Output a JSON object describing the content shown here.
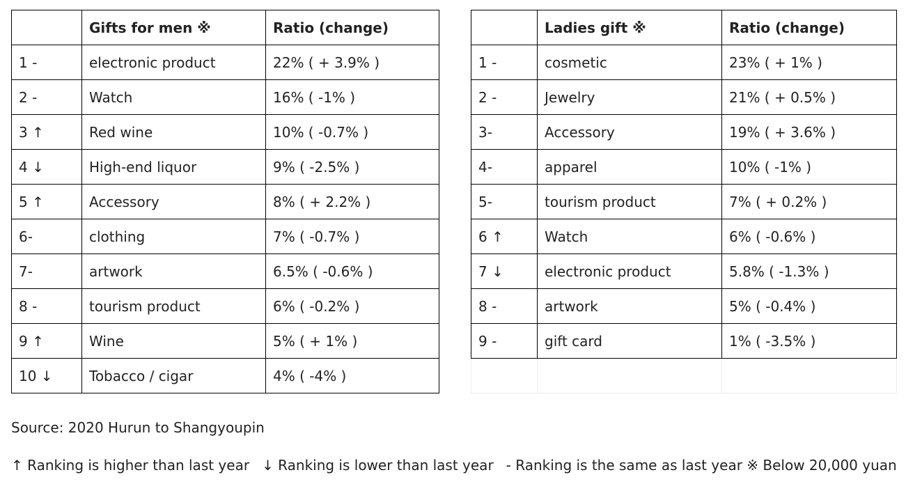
{
  "men_table": {
    "headers": [
      "",
      "Gifts for men ※",
      "Ratio (change)"
    ],
    "rows": [
      {
        "rank": "1 -",
        "item": "electronic product",
        "ratio": "22% ( + 3.9% )"
      },
      {
        "rank": "2 -",
        "item": "Watch",
        "ratio": "16% ( -1% )"
      },
      {
        "rank": "3 ↑",
        "item": "Red wine",
        "ratio": "10% ( -0.7% )"
      },
      {
        "rank": "4 ↓",
        "item": "High-end liquor",
        "ratio": "9% ( -2.5% )"
      },
      {
        "rank": "5 ↑",
        "item": "Accessory",
        "ratio": "8% ( + 2.2% )"
      },
      {
        "rank": "6-",
        "item": "clothing",
        "ratio": "7% ( -0.7% )"
      },
      {
        "rank": "7-",
        "item": "artwork",
        "ratio": "6.5% ( -0.6% )"
      },
      {
        "rank": "8 -",
        "item": "tourism product",
        "ratio": "6% ( -0.2% )"
      },
      {
        "rank": "9 ↑",
        "item": "Wine",
        "ratio": "5% ( + 1% )"
      },
      {
        "rank": "10 ↓",
        "item": "Tobacco / cigar",
        "ratio": "4% ( -4% )"
      }
    ]
  },
  "women_table": {
    "headers": [
      "",
      "Ladies gift ※",
      "Ratio (change)"
    ],
    "rows": [
      {
        "rank": "1 -",
        "item": "cosmetic",
        "ratio": "23% ( + 1% )"
      },
      {
        "rank": "2 -",
        "item": "Jewelry",
        "ratio": "21% ( + 0.5% )"
      },
      {
        "rank": "3-",
        "item": "Accessory",
        "ratio": "19% ( + 3.6% )"
      },
      {
        "rank": "4-",
        "item": "apparel",
        "ratio": "10% ( -1% )"
      },
      {
        "rank": "5-",
        "item": "tourism product",
        "ratio": "7% ( + 0.2% )"
      },
      {
        "rank": "6 ↑",
        "item": "Watch",
        "ratio": "6% ( -0.6% )"
      },
      {
        "rank": "7 ↓",
        "item": "electronic product",
        "ratio": "5.8% ( -1.3% )"
      },
      {
        "rank": "8 -",
        "item": "artwork",
        "ratio": "5% ( -0.4% )"
      },
      {
        "rank": "9 -",
        "item": "gift card",
        "ratio": "1% ( -3.5% )"
      }
    ]
  },
  "source": "Source: 2020 Hurun to Shangyoupin",
  "legend": {
    "up": "↑ Ranking is higher than last year",
    "down": "↓ Ranking is lower than last year",
    "same": "- Ranking is the same as last year",
    "note": "※ Below 20,000 yuan"
  }
}
